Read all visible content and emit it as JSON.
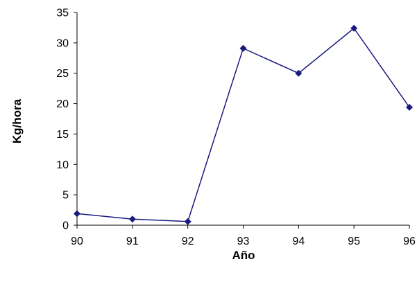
{
  "chart_data": {
    "type": "line",
    "title": "",
    "xlabel": "Año",
    "ylabel": "Kg/hora",
    "x": [
      "90",
      "91",
      "92",
      "93",
      "94",
      "95",
      "96"
    ],
    "series": [
      {
        "values": [
          1.9,
          1.0,
          0.6,
          29.1,
          25.0,
          32.4,
          19.4
        ]
      }
    ],
    "ylim": [
      0,
      35
    ],
    "yticks": [
      "0",
      "5",
      "10",
      "15",
      "20",
      "25",
      "30",
      "35"
    ],
    "grid": false,
    "colors": {
      "series": "#1a1a80",
      "axis": "#000000"
    }
  }
}
